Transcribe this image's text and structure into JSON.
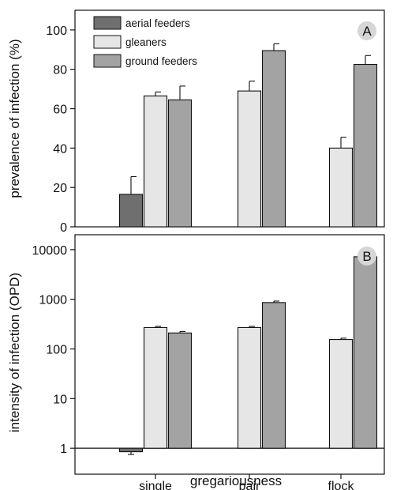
{
  "figure": {
    "xlabel": "gregariousness"
  },
  "chart_data": [
    {
      "type": "bar",
      "panel": "A",
      "categories": [
        "single",
        "pair",
        "flock"
      ],
      "ylabel": "prevalence of infection (%)",
      "ylim": [
        0,
        110
      ],
      "yticks": [
        0,
        20,
        40,
        60,
        80,
        100
      ],
      "legend_position": "top-left",
      "grid": false,
      "series": [
        {
          "name": "aerial feeders",
          "color": "#6f6f6f",
          "values": [
            16.5,
            null,
            null
          ],
          "errors": [
            9,
            null,
            null
          ]
        },
        {
          "name": "gleaners",
          "color": "#e6e6e6",
          "values": [
            66.5,
            69,
            40
          ],
          "errors": [
            2,
            5,
            5.5
          ]
        },
        {
          "name": "ground feeders",
          "color": "#a3a3a3",
          "values": [
            64.5,
            89.5,
            82.5
          ],
          "errors": [
            7,
            3.5,
            4.5
          ]
        }
      ]
    },
    {
      "type": "bar",
      "panel": "B",
      "scale": "log",
      "categories": [
        "single",
        "pair",
        "flock"
      ],
      "ylabel": "intensity of infection (OPD)",
      "ylim": [
        0.3,
        20000
      ],
      "yticks": [
        1,
        10,
        100,
        1000,
        10000
      ],
      "baseline": 1,
      "grid": false,
      "series": [
        {
          "name": "aerial feeders",
          "color": "#6f6f6f",
          "values": [
            0.85,
            null,
            null
          ],
          "errors_low": [
            0.75,
            null,
            null
          ]
        },
        {
          "name": "gleaners",
          "color": "#e6e6e6",
          "values": [
            270,
            270,
            155
          ],
          "errors_high": [
            285,
            285,
            165
          ]
        },
        {
          "name": "ground feeders",
          "color": "#a3a3a3",
          "values": [
            210,
            860,
            7200
          ],
          "errors_high": [
            225,
            920,
            7400
          ]
        }
      ]
    }
  ]
}
